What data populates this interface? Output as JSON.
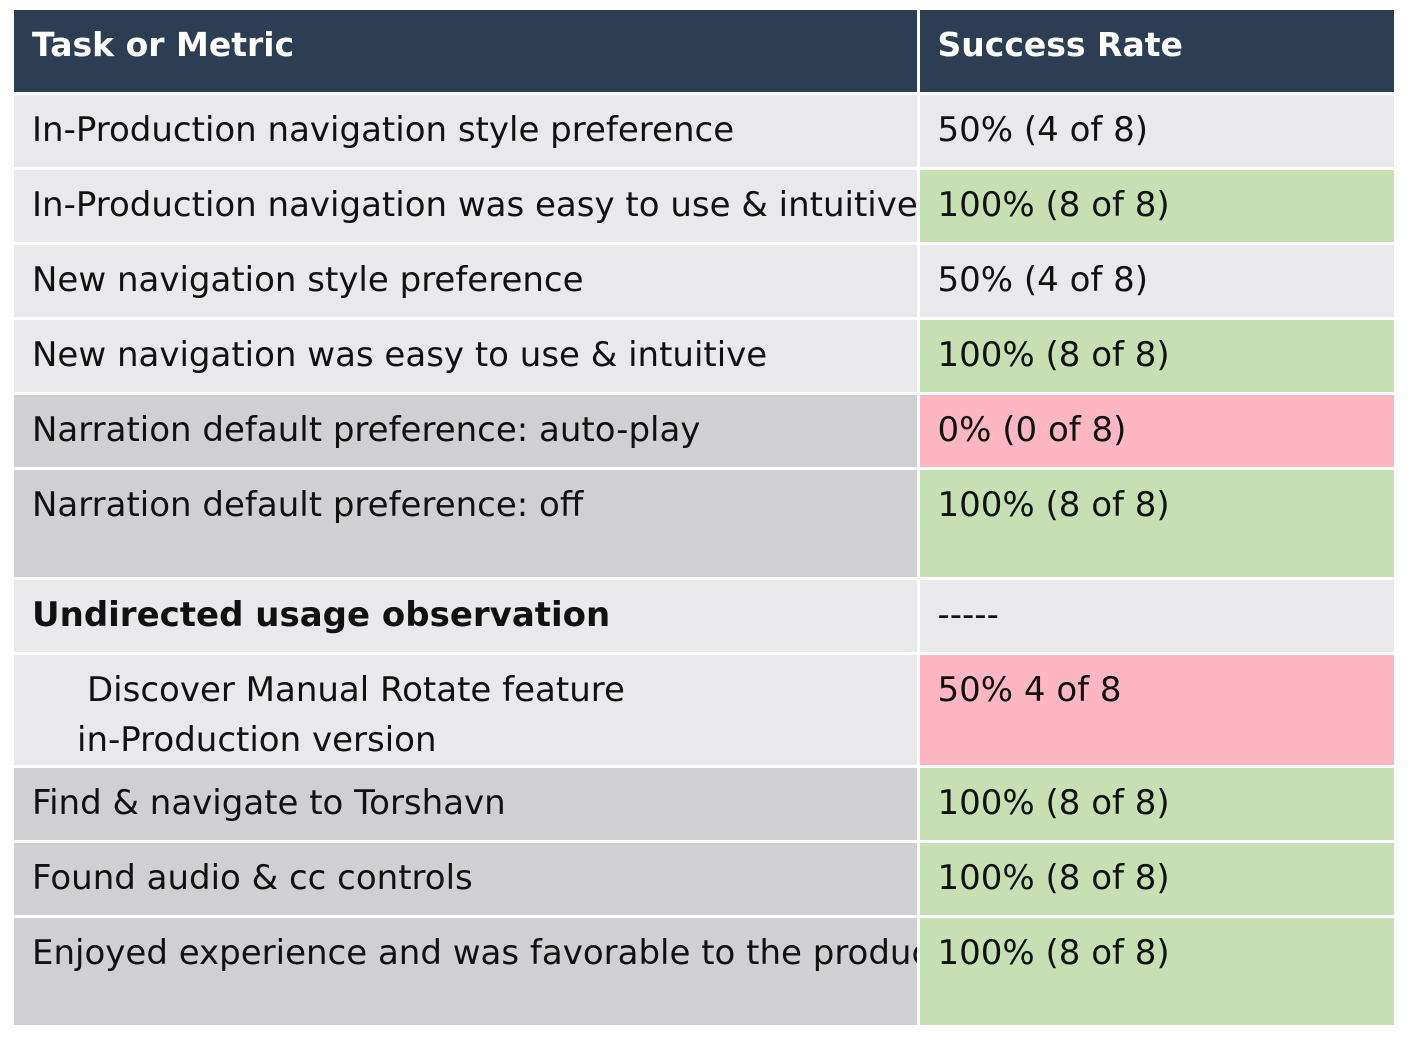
{
  "table": {
    "headers": [
      "Task or Metric",
      "Success Rate"
    ],
    "rows": [
      {
        "task": "In-Production navigation style preference",
        "rate": "50% (4 of 8)",
        "rate_status": "neutral"
      },
      {
        "task": "In-Production navigation was easy to use & intuitive",
        "rate": "100% (8 of 8)",
        "rate_status": "success"
      },
      {
        "task": "New navigation style preference",
        "rate": "50% (4 of 8)",
        "rate_status": "neutral"
      },
      {
        "task": "New navigation was easy to use & intuitive",
        "rate": "100% (8 of 8)",
        "rate_status": "success"
      },
      {
        "task": "Narration default preference: auto-play",
        "rate": "0% (0 of 8)",
        "rate_status": "fail"
      },
      {
        "task": "Narration default preference: off",
        "rate": "100% (8 of 8)",
        "rate_status": "success"
      },
      {
        "task": "Undirected usage observation",
        "rate": "-----",
        "rate_status": "neutral"
      },
      {
        "task_line1": "Discover Manual Rotate feature",
        "task_line2": "in-Production version",
        "rate": "50% 4 of 8",
        "rate_status": "fail"
      },
      {
        "task": "Find & navigate to Torshavn",
        "rate": "100% (8 of 8)",
        "rate_status": "success"
      },
      {
        "task": "Found audio & cc controls",
        "rate": "100% (8 of 8)",
        "rate_status": "success"
      },
      {
        "task": "Enjoyed experience and was favorable to the product",
        "rate": "100% (8 of 8)",
        "rate_status": "success"
      }
    ]
  },
  "colors": {
    "header_bg": "#2c3e54",
    "row_light": "#e9e9eb",
    "row_mid": "#d0d0d2",
    "success": "#c6e0b4",
    "fail": "#ffb6c3"
  }
}
